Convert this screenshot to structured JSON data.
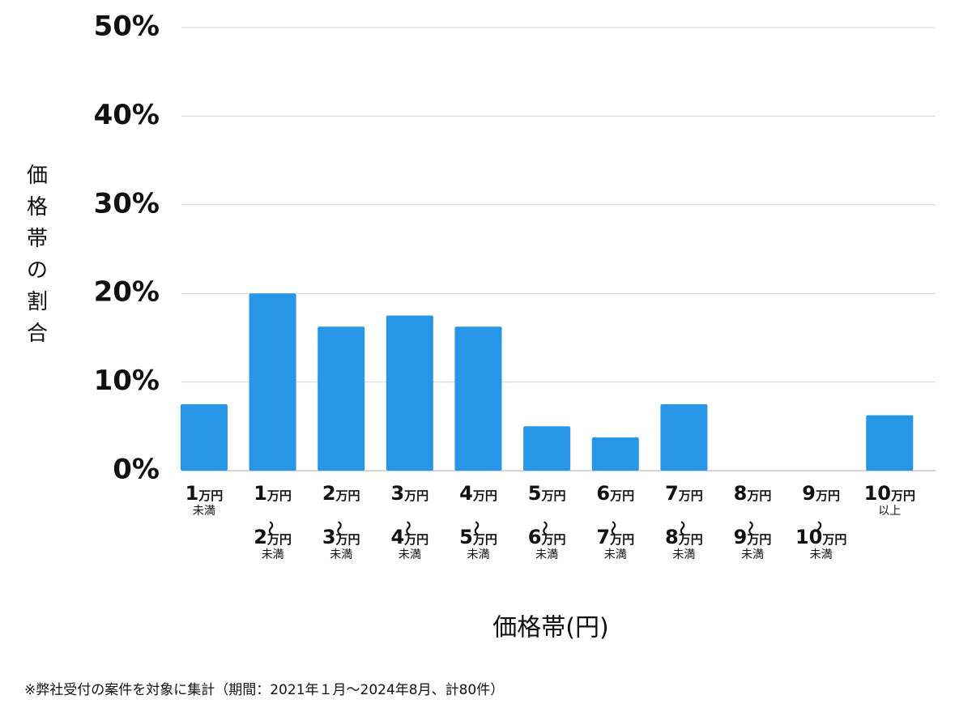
{
  "chart_data": {
    "type": "bar",
    "y_label": "価格帯の割合",
    "x_label": "価格帯(円)",
    "footnote": "※弊社受付の案件を対象に集計（期間：2021年１月〜2024年8月、計80件）",
    "categories": [
      "1万円未満",
      "1万円〜2万円未満",
      "2万円〜3万円未満",
      "3万円〜4万円未満",
      "4万円〜5万円未満",
      "5万円〜6万円未満",
      "6万円〜7万円未満",
      "7万円〜8万円未満",
      "8万円〜9万円未満",
      "9万円〜10万円未満",
      "10万円以上"
    ],
    "values": [
      7.5,
      20,
      16.25,
      17.5,
      16.25,
      5,
      3.75,
      7.5,
      0,
      0,
      6.25
    ],
    "color": "#2896e6",
    "ylim": [
      0,
      50
    ],
    "yticks": [
      {
        "value": 0,
        "label": "0%"
      },
      {
        "value": 10,
        "label": "10%"
      },
      {
        "value": 20,
        "label": "20%"
      },
      {
        "value": 30,
        "label": "30%"
      },
      {
        "value": 40,
        "label": "40%"
      },
      {
        "value": 50,
        "label": "50%"
      }
    ],
    "grid": true
  }
}
